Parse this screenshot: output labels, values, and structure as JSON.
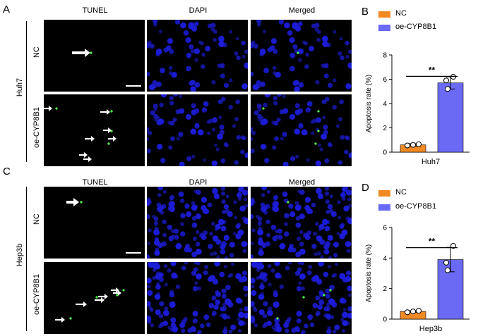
{
  "figure": {
    "panels": {
      "A": "A",
      "B": "B",
      "C": "C",
      "D": "D"
    },
    "columns": [
      "TUNEL",
      "DAPI",
      "Merged"
    ],
    "groupA": "Huh7",
    "groupC": "Hep3b",
    "rowNC": "NC",
    "rowOE": "oe-CYP8B1"
  },
  "colors": {
    "nc": "#f28a24",
    "oe": "#6a6af5",
    "nuclei": "#1c1cd6",
    "tunel": "#4cff4c"
  },
  "chart_data": [
    {
      "type": "bar",
      "categories": [
        "NC",
        "oe-CYP8B1"
      ],
      "values": [
        0.6,
        5.7
      ],
      "errors": [
        0.1,
        0.5
      ],
      "points": [
        [
          0.55,
          0.6,
          0.65
        ],
        [
          5.2,
          5.9,
          6.2
        ]
      ],
      "legend": [
        "NC",
        "oe-CYP8B1"
      ],
      "xlabel": "Huh7",
      "ylabel": "Apoptosis rate (%)",
      "ylim": [
        0,
        8
      ],
      "yticks": [
        "0",
        "2",
        "4",
        "6",
        "8"
      ],
      "significance": "**"
    },
    {
      "type": "bar",
      "categories": [
        "NC",
        "oe-CYP8B1"
      ],
      "values": [
        0.5,
        3.9
      ],
      "errors": [
        0.05,
        0.8
      ],
      "points": [
        [
          0.45,
          0.5,
          0.55
        ],
        [
          3.2,
          3.7,
          4.8
        ]
      ],
      "legend": [
        "NC",
        "oe-CYP8B1"
      ],
      "xlabel": "Hep3b",
      "ylabel": "Apoptosis rate (%)",
      "ylim": [
        0,
        6
      ],
      "yticks": [
        "0",
        "2",
        "4",
        "6"
      ],
      "significance": "**"
    }
  ]
}
